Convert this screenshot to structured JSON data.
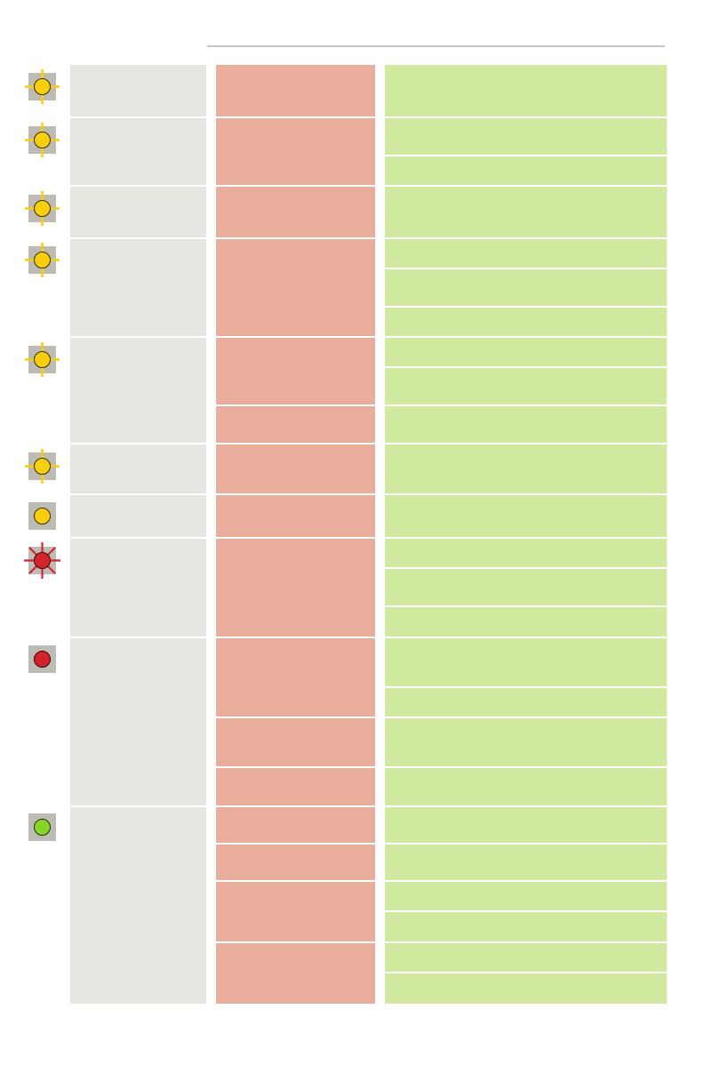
{
  "indicator_colors": {
    "yellow": "#f7cf0c",
    "red": "#d4232e",
    "green": "#87d42b",
    "box": "#bdbcb4"
  },
  "column_colors": {
    "state": "#e6e6e1",
    "meaning": "#eaae9c",
    "action": "#d2e9a0"
  },
  "groups": [
    {
      "indicator": "yellow-flashing-icon",
      "meanings": 1,
      "actions": 1
    },
    {
      "indicator": "yellow-flashing-icon",
      "meanings": 1,
      "actions": 2
    },
    {
      "indicator": "yellow-flashing-icon",
      "meanings": 1,
      "actions": 1
    },
    {
      "indicator": "yellow-flashing-icon",
      "meanings": 1,
      "actions": 3
    },
    {
      "indicator": "yellow-flashing-icon",
      "meanings": 2,
      "actions": 3
    },
    {
      "indicator": "yellow-flashing-icon",
      "meanings": 1,
      "actions": 1
    },
    {
      "indicator": "yellow-solid-icon",
      "meanings": 1,
      "actions": 1
    },
    {
      "indicator": "red-flashing-icon",
      "meanings": 1,
      "actions": 3
    },
    {
      "indicator": "red-solid-icon",
      "meanings": 3,
      "actions": 4
    },
    {
      "indicator": "green-solid-icon",
      "meanings": 4,
      "actions": 6
    }
  ]
}
